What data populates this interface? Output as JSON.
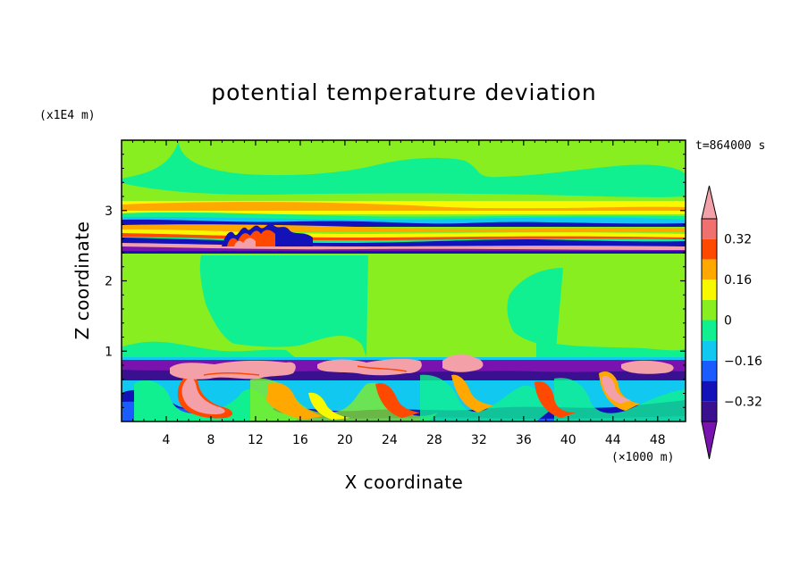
{
  "chart_data": {
    "type": "heatmap",
    "title": "potential temperature deviation",
    "xlabel": "X coordinate",
    "ylabel": "Z coordinate",
    "x_unit": "(×1000 m)",
    "y_unit": "(x1E4 m)",
    "time_label": "t=864000 s",
    "xlim": [
      0,
      50.5
    ],
    "ylim": [
      0,
      4
    ],
    "x_ticks": [
      4,
      8,
      12,
      16,
      20,
      24,
      28,
      32,
      36,
      40,
      44,
      48
    ],
    "y_ticks": [
      1,
      2,
      3
    ],
    "colorbar": {
      "levels": [
        -0.4,
        -0.32,
        -0.24,
        -0.16,
        -0.08,
        0,
        0.08,
        0.16,
        0.24,
        0.32,
        0.4
      ],
      "colors": [
        "#7a12b0",
        "#3a1090",
        "#1212b8",
        "#1a5cff",
        "#10c8f0",
        "#10f090",
        "#88ee20",
        "#f8f800",
        "#ffa800",
        "#ff4800",
        "#f07070",
        "#f4a0a8"
      ],
      "tick_labels": [
        "0.32",
        "0.16",
        "0",
        "−0.16",
        "−0.32"
      ],
      "tick_values": [
        0.32,
        0.16,
        0,
        -0.16,
        -0.32
      ]
    }
  }
}
